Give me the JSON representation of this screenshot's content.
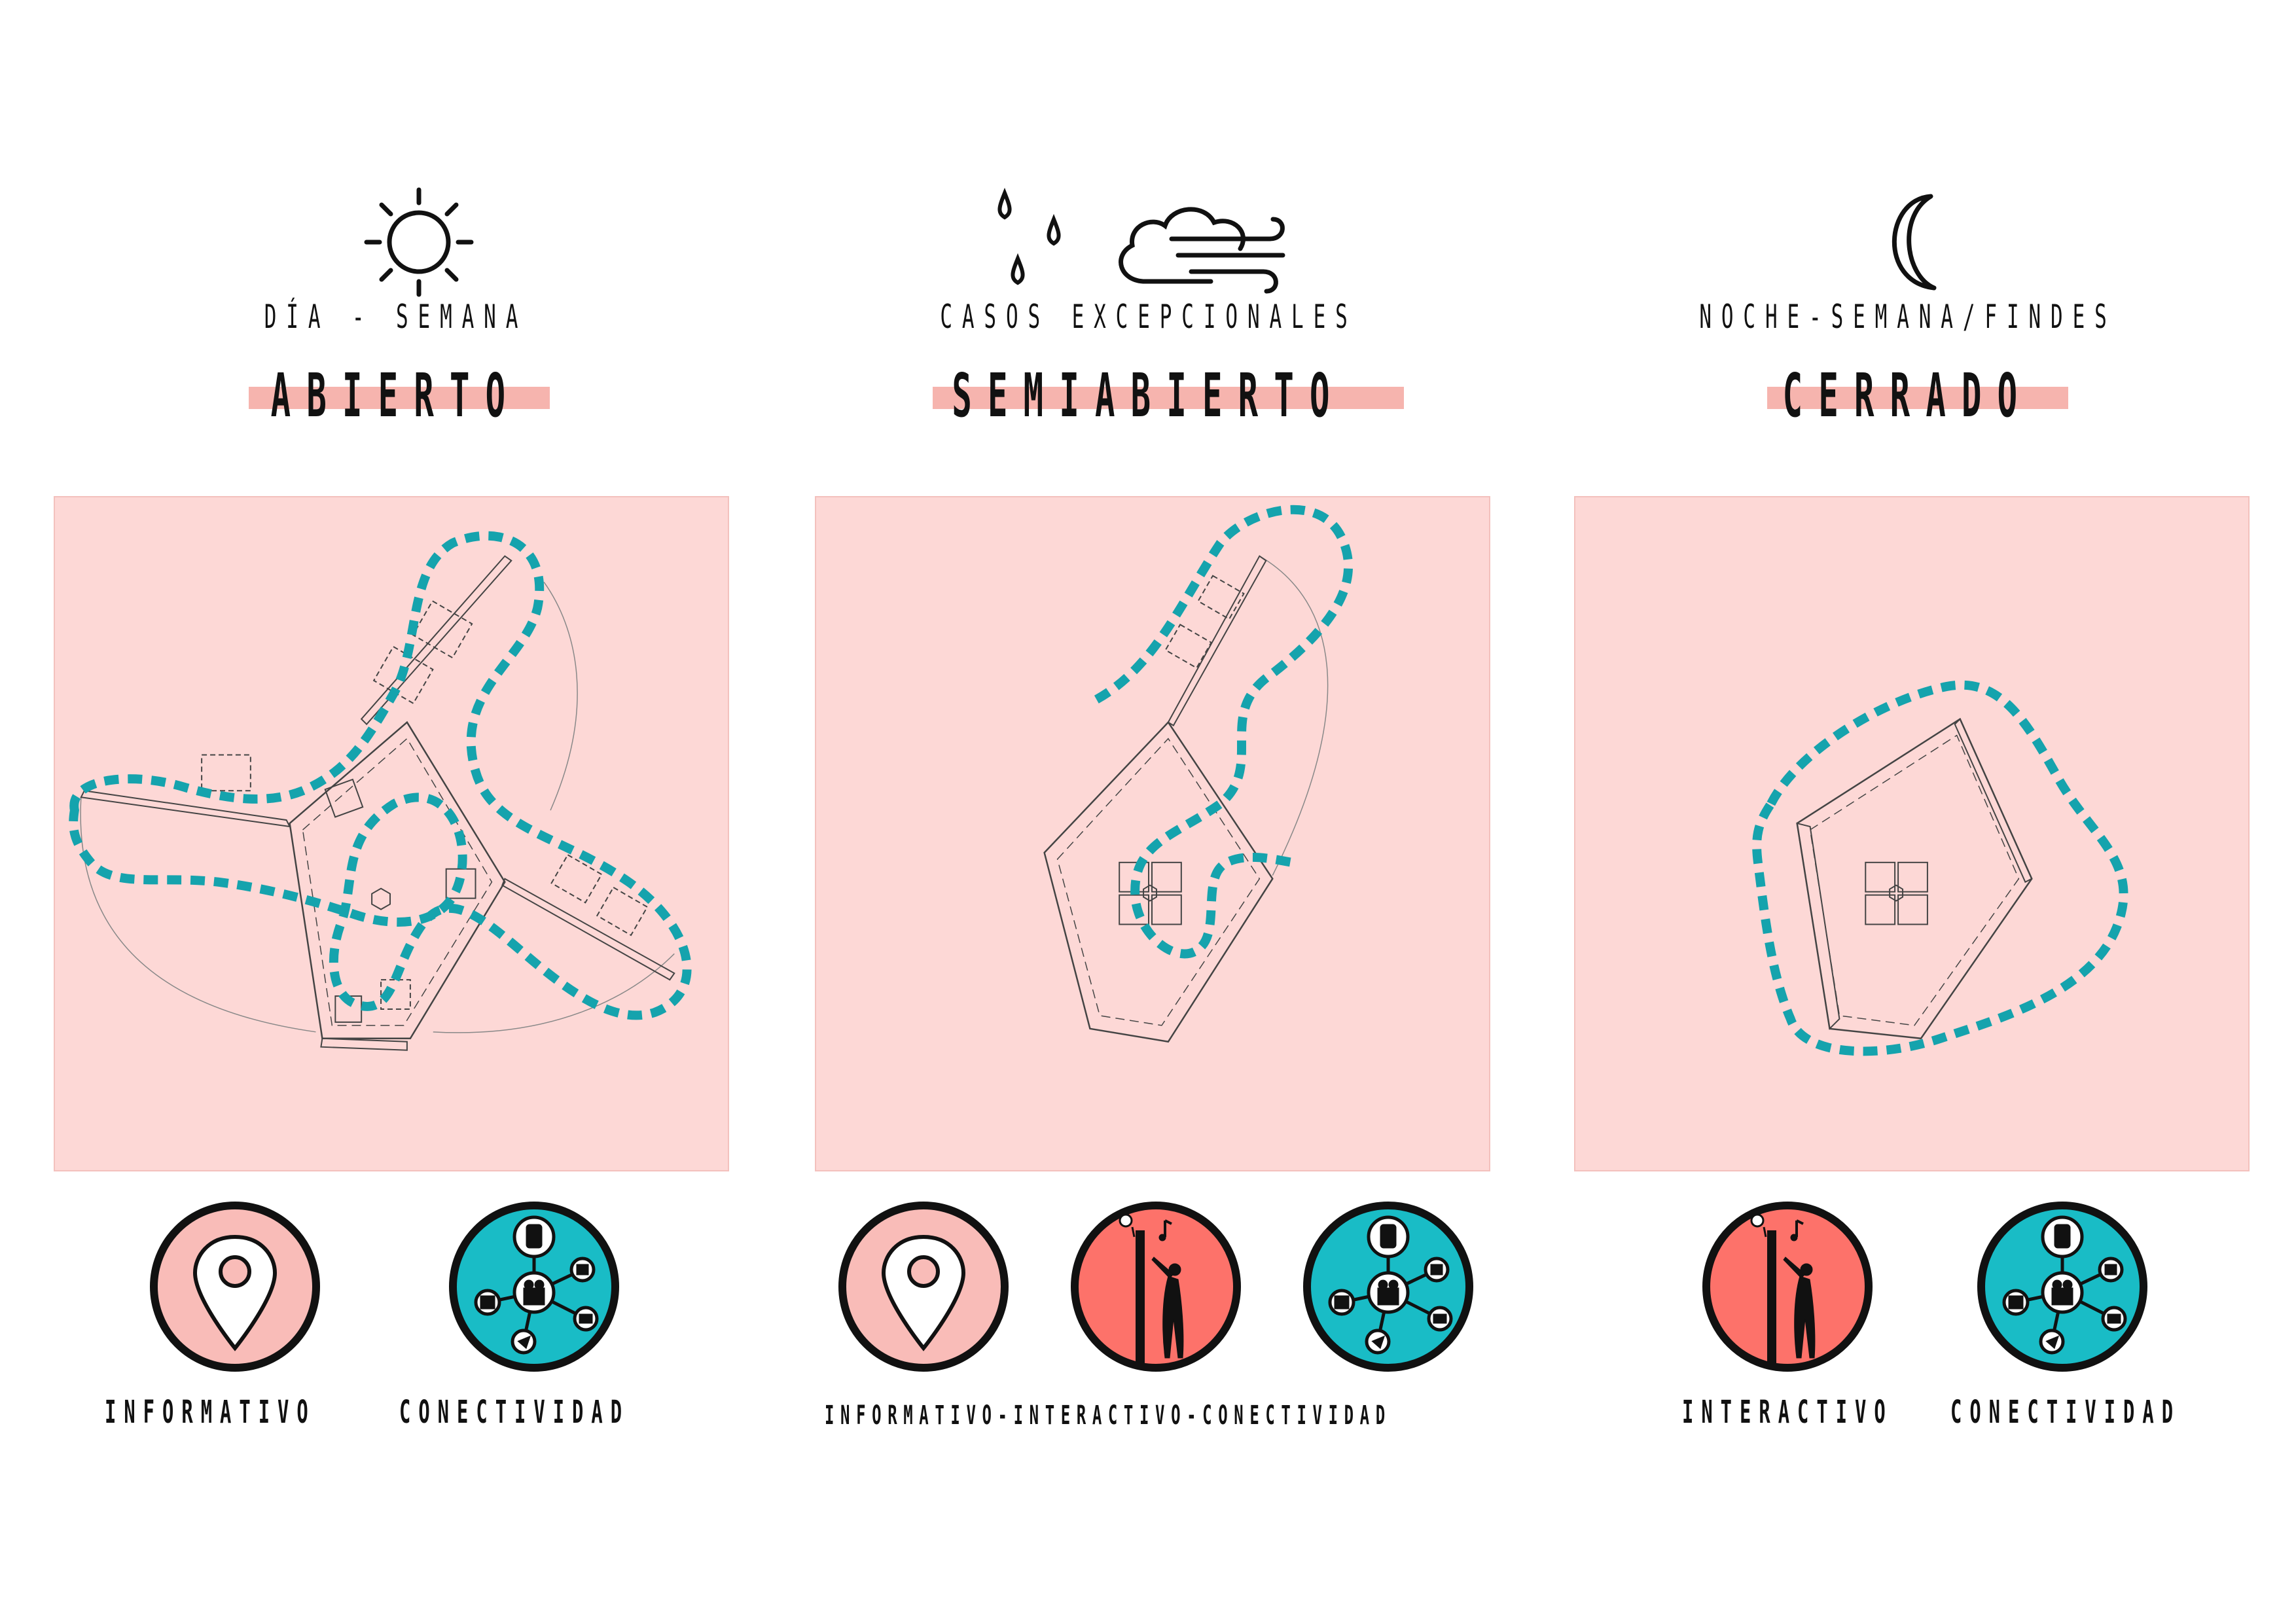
{
  "columns": [
    {
      "subtitle": "DÍA - SEMANA",
      "state": "ABIERTO",
      "weather_icons": [
        "sun-icon"
      ],
      "badges": [
        "location-pin-icon",
        "connectivity-network-icon"
      ],
      "mode_labels": [
        "INFORMATIVO",
        "CONECTIVIDAD"
      ]
    },
    {
      "subtitle": "CASOS EXCEPCIONALES",
      "state": "SEMIABIERTO",
      "weather_icons": [
        "rain-drops-icon",
        "wind-cloud-icon"
      ],
      "badges": [
        "location-pin-icon",
        "interactive-person-icon",
        "connectivity-network-icon"
      ],
      "mode_labels": [
        "INFORMATIVO-INTERACTIVO-CONECTIVIDAD"
      ]
    },
    {
      "subtitle": "NOCHE-SEMANA/FINDES",
      "state": "CERRADO",
      "weather_icons": [
        "moon-icon"
      ],
      "badges": [
        "interactive-person-icon",
        "connectivity-network-icon"
      ],
      "mode_labels": [
        "INTERACTIVO",
        "CONECTIVIDAD"
      ]
    }
  ],
  "colors": {
    "panel_bg": "#fdd8d6",
    "highlight_band": "#f6b4ae",
    "dotted_path": "#15a3ad",
    "pin_badge": "#f9bcb8",
    "interactive_badge": "#fd726a",
    "connectivity_badge": "#19bcc6"
  }
}
